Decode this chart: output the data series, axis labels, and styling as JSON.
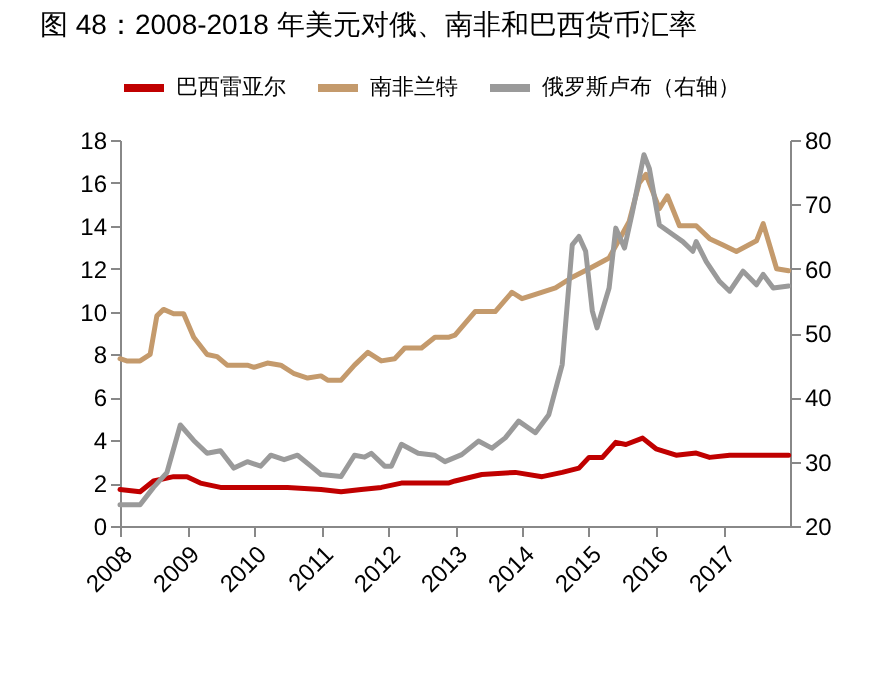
{
  "chart_data": {
    "type": "line",
    "title": "图 48：2008-2018 年美元对俄、南非和巴西货币汇率",
    "xlim": [
      2008,
      2018
    ],
    "xticks": [
      2008,
      2009,
      2010,
      2011,
      2012,
      2013,
      2014,
      2015,
      2016,
      2017
    ],
    "ylim": [
      0,
      18
    ],
    "yticks": [
      0,
      2,
      4,
      6,
      8,
      10,
      12,
      14,
      16,
      18
    ],
    "y2lim": [
      20,
      80
    ],
    "y2ticks": [
      20,
      30,
      40,
      50,
      60,
      70,
      80
    ],
    "grid": false,
    "legend": "top",
    "marker": "none",
    "line_style": "solid",
    "series": [
      {
        "name": "巴西雷亚尔",
        "color": "#c00000",
        "x": [
          2008.0,
          2008.3,
          2008.5,
          2008.8,
          2009.0,
          2009.2,
          2009.5,
          2009.8,
          2010.0,
          2010.5,
          2011.0,
          2011.3,
          2011.6,
          2011.9,
          2012.2,
          2012.6,
          2012.9,
          2013.0,
          2013.4,
          2013.9,
          2014.3,
          2014.6,
          2014.85,
          2015.0,
          2015.2,
          2015.4,
          2015.55,
          2015.8,
          2016.0,
          2016.3,
          2016.6,
          2016.8,
          2017.1,
          2017.5,
          2017.98
        ],
        "values": [
          1.7,
          1.6,
          2.1,
          2.3,
          2.3,
          2.0,
          1.8,
          1.8,
          1.8,
          1.8,
          1.7,
          1.6,
          1.7,
          1.8,
          2.0,
          2.0,
          2.0,
          2.1,
          2.4,
          2.5,
          2.3,
          2.5,
          2.7,
          3.2,
          3.2,
          3.9,
          3.8,
          4.1,
          3.6,
          3.3,
          3.4,
          3.2,
          3.3,
          3.3,
          3.3
        ]
      },
      {
        "name": "南非兰特",
        "color": "#c49a6c",
        "x": [
          2008.0,
          2008.1,
          2008.3,
          2008.45,
          2008.55,
          2008.65,
          2008.8,
          2008.95,
          2009.1,
          2009.3,
          2009.45,
          2009.6,
          2009.9,
          2010.0,
          2010.2,
          2010.4,
          2010.6,
          2010.8,
          2011.0,
          2011.1,
          2011.3,
          2011.5,
          2011.7,
          2011.9,
          2012.1,
          2012.25,
          2012.5,
          2012.7,
          2012.9,
          2013.0,
          2013.3,
          2013.6,
          2013.85,
          2014.0,
          2014.2,
          2014.5,
          2014.75,
          2015.0,
          2015.3,
          2015.6,
          2015.75,
          2015.85,
          2016.05,
          2016.17,
          2016.35,
          2016.6,
          2016.8,
          2017.0,
          2017.2,
          2017.5,
          2017.6,
          2017.8,
          2017.98
        ],
        "values": [
          7.8,
          7.7,
          7.7,
          8.0,
          9.8,
          10.1,
          9.9,
          9.9,
          8.8,
          8.0,
          7.9,
          7.5,
          7.5,
          7.4,
          7.6,
          7.5,
          7.1,
          6.9,
          7.0,
          6.8,
          6.8,
          7.5,
          8.1,
          7.7,
          7.8,
          8.3,
          8.3,
          8.8,
          8.8,
          8.9,
          10.0,
          10.0,
          10.9,
          10.6,
          10.8,
          11.1,
          11.6,
          12.0,
          12.5,
          14.2,
          16.0,
          16.4,
          14.8,
          15.4,
          14.0,
          14.0,
          13.4,
          13.1,
          12.8,
          13.3,
          14.1,
          12.0,
          11.9
        ]
      },
      {
        "name": "俄罗斯卢布（右轴）",
        "color": "#9a9a9a",
        "axis": "y2",
        "x": [
          2008.0,
          2008.3,
          2008.5,
          2008.7,
          2008.9,
          2009.1,
          2009.3,
          2009.5,
          2009.7,
          2009.9,
          2010.1,
          2010.25,
          2010.45,
          2010.65,
          2010.85,
          2011.0,
          2011.3,
          2011.5,
          2011.65,
          2011.75,
          2011.95,
          2012.05,
          2012.2,
          2012.45,
          2012.7,
          2012.85,
          2013.1,
          2013.35,
          2013.55,
          2013.75,
          2013.95,
          2014.2,
          2014.4,
          2014.6,
          2014.75,
          2014.85,
          2014.95,
          2015.05,
          2015.12,
          2015.3,
          2015.4,
          2015.53,
          2015.65,
          2015.82,
          2015.9,
          2016.05,
          2016.25,
          2016.4,
          2016.55,
          2016.6,
          2016.75,
          2016.95,
          2017.1,
          2017.3,
          2017.5,
          2017.6,
          2017.75,
          2017.98
        ],
        "values": [
          23.3,
          23.3,
          26,
          28.3,
          35.7,
          33.3,
          31.3,
          31.7,
          29,
          30,
          29.3,
          31,
          30.3,
          31,
          29.3,
          28,
          27.7,
          31,
          30.7,
          31.3,
          29.3,
          29.3,
          32.7,
          31.3,
          31,
          30,
          31.1,
          33.2,
          32.1,
          33.7,
          36.3,
          34.5,
          37.3,
          45.1,
          63.7,
          65,
          62.7,
          53.4,
          50.8,
          57,
          66.3,
          63.2,
          68.9,
          77.7,
          75.6,
          66.8,
          65.3,
          64.2,
          62.7,
          64.2,
          61.1,
          58,
          56.5,
          59.6,
          57.5,
          59.1,
          57,
          57.3
        ]
      }
    ]
  }
}
